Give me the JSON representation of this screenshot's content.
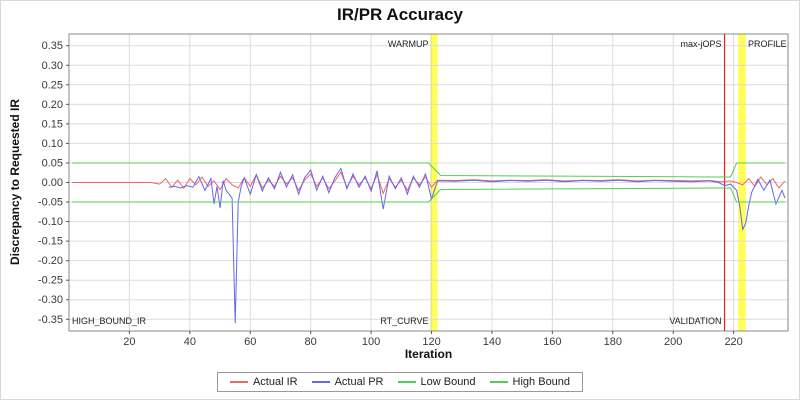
{
  "chart_data": {
    "type": "line",
    "title": "IR/PR Accuracy",
    "xlabel": "Iteration",
    "ylabel": "Discrepancy to Requested IR",
    "xlim": [
      0,
      238
    ],
    "ylim": [
      -0.38,
      0.38
    ],
    "x_ticks": [
      20,
      40,
      60,
      80,
      100,
      120,
      140,
      160,
      180,
      200,
      220
    ],
    "y_ticks": [
      0.35,
      0.3,
      0.25,
      0.2,
      0.15,
      0.1,
      0.05,
      0.0,
      -0.05,
      -0.1,
      -0.15,
      -0.2,
      -0.25,
      -0.3,
      -0.35
    ],
    "grid": true,
    "legend_position": "bottom",
    "series": [
      {
        "name": "Actual IR",
        "color": "#ee6666",
        "points": [
          [
            1,
            0
          ],
          [
            14,
            0
          ],
          [
            27,
            0
          ],
          [
            30,
            -0.004
          ],
          [
            32,
            0.01
          ],
          [
            34,
            -0.012
          ],
          [
            36,
            0.006
          ],
          [
            38,
            -0.015
          ],
          [
            40,
            0.01
          ],
          [
            42,
            -0.006
          ],
          [
            44,
            0.014
          ],
          [
            46,
            -0.01
          ],
          [
            48,
            0.004
          ],
          [
            50,
            -0.018
          ],
          [
            52,
            0.01
          ],
          [
            54,
            -0.006
          ],
          [
            56,
            -0.014
          ],
          [
            58,
            0.012
          ],
          [
            60,
            -0.01
          ],
          [
            62,
            0.02
          ],
          [
            64,
            -0.014
          ],
          [
            66,
            0.006
          ],
          [
            68,
            -0.01
          ],
          [
            70,
            0.016
          ],
          [
            72,
            -0.004
          ],
          [
            74,
            0.012
          ],
          [
            76,
            -0.02
          ],
          [
            78,
            0.006
          ],
          [
            80,
            0.022
          ],
          [
            82,
            -0.01
          ],
          [
            84,
            0.012
          ],
          [
            86,
            -0.016
          ],
          [
            88,
            0.004
          ],
          [
            90,
            0.026
          ],
          [
            92,
            -0.012
          ],
          [
            94,
            0.016
          ],
          [
            96,
            -0.006
          ],
          [
            98,
            0.012
          ],
          [
            100,
            -0.016
          ],
          [
            102,
            0.02
          ],
          [
            104,
            -0.028
          ],
          [
            106,
            0.01
          ],
          [
            108,
            -0.012
          ],
          [
            110,
            0.006
          ],
          [
            112,
            -0.02
          ],
          [
            114,
            0.012
          ],
          [
            116,
            -0.006
          ],
          [
            118,
            0.014
          ],
          [
            120,
            -0.012
          ],
          [
            122,
            0.006
          ],
          [
            128,
            0.005
          ],
          [
            134,
            0.007
          ],
          [
            140,
            0.004
          ],
          [
            146,
            0.006
          ],
          [
            152,
            0.005
          ],
          [
            158,
            0.007
          ],
          [
            164,
            0.004
          ],
          [
            170,
            0.006
          ],
          [
            176,
            0.005
          ],
          [
            182,
            0.007
          ],
          [
            188,
            0.004
          ],
          [
            194,
            0.006
          ],
          [
            200,
            0.005
          ],
          [
            206,
            0.004
          ],
          [
            212,
            0.005
          ],
          [
            216,
            0.002
          ],
          [
            219,
            0.004
          ],
          [
            221,
            0
          ],
          [
            223,
            -0.006
          ],
          [
            225,
            0.01
          ],
          [
            227,
            -0.01
          ],
          [
            229,
            0.014
          ],
          [
            231,
            -0.006
          ],
          [
            233,
            0.01
          ],
          [
            235,
            -0.014
          ],
          [
            237,
            0.004
          ]
        ]
      },
      {
        "name": "Actual PR",
        "color": "#6666ee",
        "points": [
          [
            33,
            -0.012
          ],
          [
            35,
            -0.01
          ],
          [
            37,
            -0.014
          ],
          [
            39,
            -0.008
          ],
          [
            41,
            -0.012
          ],
          [
            43,
            0.015
          ],
          [
            45,
            -0.02
          ],
          [
            47,
            0.01
          ],
          [
            48,
            -0.055
          ],
          [
            49,
            -0.01
          ],
          [
            50,
            -0.065
          ],
          [
            51,
            0.005
          ],
          [
            52,
            -0.02
          ],
          [
            54,
            -0.04
          ],
          [
            55,
            -0.36
          ],
          [
            56,
            -0.05
          ],
          [
            57,
            -0.01
          ],
          [
            58,
            0.012
          ],
          [
            60,
            -0.03
          ],
          [
            62,
            0.02
          ],
          [
            64,
            -0.022
          ],
          [
            66,
            0.012
          ],
          [
            68,
            -0.016
          ],
          [
            70,
            0.026
          ],
          [
            72,
            -0.012
          ],
          [
            74,
            0.02
          ],
          [
            76,
            -0.03
          ],
          [
            78,
            0.012
          ],
          [
            80,
            0.032
          ],
          [
            82,
            -0.02
          ],
          [
            84,
            0.016
          ],
          [
            86,
            -0.026
          ],
          [
            88,
            0.012
          ],
          [
            90,
            0.036
          ],
          [
            92,
            -0.016
          ],
          [
            94,
            0.022
          ],
          [
            96,
            -0.012
          ],
          [
            98,
            0.016
          ],
          [
            100,
            -0.022
          ],
          [
            102,
            0.03
          ],
          [
            104,
            -0.068
          ],
          [
            106,
            0.016
          ],
          [
            108,
            -0.016
          ],
          [
            110,
            0.012
          ],
          [
            112,
            -0.03
          ],
          [
            114,
            0.016
          ],
          [
            116,
            -0.012
          ],
          [
            118,
            0.022
          ],
          [
            120,
            -0.042
          ],
          [
            122,
            0.004
          ],
          [
            128,
            0.003
          ],
          [
            134,
            0.006
          ],
          [
            140,
            0.002
          ],
          [
            146,
            0.005
          ],
          [
            152,
            0.003
          ],
          [
            158,
            0.006
          ],
          [
            164,
            0.002
          ],
          [
            170,
            0.005
          ],
          [
            176,
            0.003
          ],
          [
            182,
            0.006
          ],
          [
            188,
            0.002
          ],
          [
            194,
            0.005
          ],
          [
            200,
            0.003
          ],
          [
            206,
            0.002
          ],
          [
            212,
            0.004
          ],
          [
            215,
            0
          ],
          [
            217,
            -0.008
          ],
          [
            219,
            -0.004
          ],
          [
            221,
            -0.02
          ],
          [
            222,
            -0.06
          ],
          [
            223,
            -0.12
          ],
          [
            224,
            -0.105
          ],
          [
            225,
            -0.06
          ],
          [
            226,
            -0.025
          ],
          [
            228,
            0.008
          ],
          [
            230,
            -0.02
          ],
          [
            232,
            0.006
          ],
          [
            234,
            -0.055
          ],
          [
            236,
            -0.02
          ],
          [
            237,
            -0.04
          ]
        ]
      },
      {
        "name": "Low Bound",
        "color": "#55cc55",
        "points": [
          [
            1,
            -0.05
          ],
          [
            119,
            -0.05
          ],
          [
            123,
            -0.018
          ],
          [
            215,
            -0.014
          ],
          [
            219,
            -0.014
          ],
          [
            221,
            -0.05
          ],
          [
            237,
            -0.05
          ]
        ]
      },
      {
        "name": "High Bound",
        "color": "#55cc55",
        "points": [
          [
            1,
            0.05
          ],
          [
            119,
            0.05
          ],
          [
            123,
            0.018
          ],
          [
            215,
            0.014
          ],
          [
            219,
            0.014
          ],
          [
            221,
            0.05
          ],
          [
            237,
            0.05
          ]
        ]
      }
    ],
    "bands": [
      {
        "name": "warmup-band",
        "x0": 119.5,
        "x1": 122,
        "color": "#ffff55"
      },
      {
        "name": "profile-band",
        "x0": 221.5,
        "x1": 224,
        "color": "#ffff55"
      }
    ],
    "vlines": [
      {
        "name": "max-jops-line",
        "x": 217,
        "color": "#dd2222"
      }
    ],
    "annotations": [
      {
        "text": "WARMUP",
        "x": 119,
        "anchor": "end",
        "pos": "top"
      },
      {
        "text": "max-jOPS",
        "x": 216,
        "anchor": "end",
        "pos": "top"
      },
      {
        "text": "PROFILE",
        "x": 237.5,
        "anchor": "end",
        "pos": "top"
      },
      {
        "text": "HIGH_BOUND_IR",
        "x": 1,
        "anchor": "start",
        "pos": "bottom"
      },
      {
        "text": "RT_CURVE",
        "x": 119,
        "anchor": "end",
        "pos": "bottom"
      },
      {
        "text": "VALIDATION",
        "x": 216,
        "anchor": "end",
        "pos": "bottom"
      }
    ]
  }
}
